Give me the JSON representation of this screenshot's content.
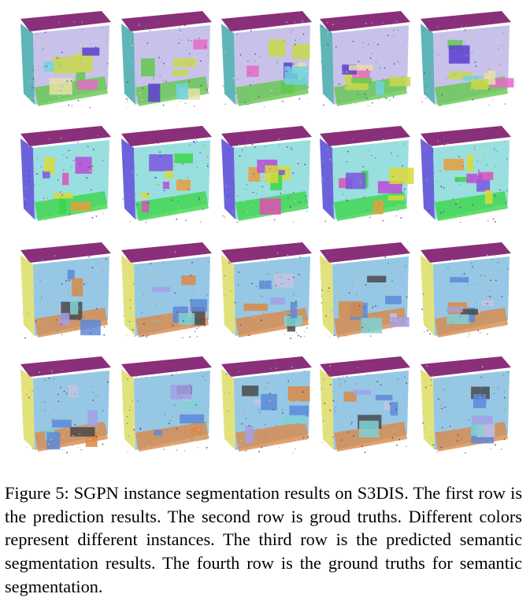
{
  "figure": {
    "rows": [
      {
        "row": "instance-prediction",
        "colors": [
          "#8a2f7a",
          "#2a9c9f",
          "#9a8fd8",
          "#c9d84b",
          "#63c84c",
          "#e56bc8",
          "#5c3dd0",
          "#e7e0a8",
          "#6ed3e0"
        ]
      },
      {
        "row": "instance-ground-truth",
        "colors": [
          "#8a2f7a",
          "#3b2fd0",
          "#45c4c4",
          "#d9d93a",
          "#3bd64a",
          "#e04fb4",
          "#7a57e0",
          "#e89e3a",
          "#b84bd8"
        ]
      },
      {
        "row": "semantic-prediction",
        "colors": [
          "#8a2f7a",
          "#d8d850",
          "#3f9ad0",
          "#5a8ad8",
          "#d98a48",
          "#c7c2e0",
          "#4a4a4a",
          "#7fd1d6",
          "#a3a0e6"
        ]
      },
      {
        "row": "semantic-ground-truth",
        "colors": [
          "#8a2f7a",
          "#d8d850",
          "#3f9ad0",
          "#5a8ad8",
          "#d98a48",
          "#c7c2e0",
          "#4a4a4a",
          "#7fd1d6",
          "#a3a0e6"
        ]
      }
    ]
  },
  "caption": {
    "text": "Figure 5: SGPN instance segmentation results on S3DIS. The first row is the prediction results. The second row is groud truths. Different colors represent different instances. The third row is the predicted semantic segmentation re­sults. The fourth row is the ground truths for semantic seg­mentation."
  }
}
